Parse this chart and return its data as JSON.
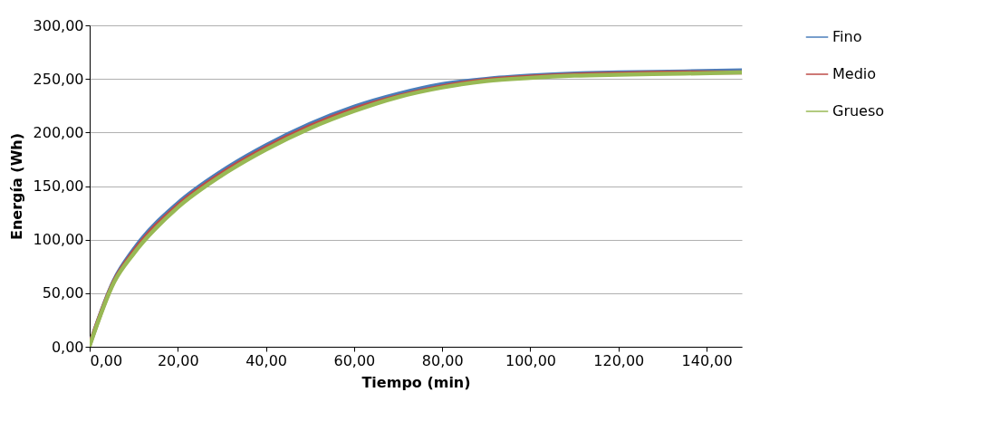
{
  "chart_data": {
    "type": "line",
    "xlabel": "Tiempo (min)",
    "ylabel": "Energía (Wh)",
    "xlim": [
      0,
      148
    ],
    "ylim": [
      0,
      300
    ],
    "xticks": [
      {
        "value": 0,
        "label": "0,00"
      },
      {
        "value": 20,
        "label": "20,00"
      },
      {
        "value": 40,
        "label": "40,00"
      },
      {
        "value": 60,
        "label": "60,00"
      },
      {
        "value": 80,
        "label": "80,00"
      },
      {
        "value": 100,
        "label": "100,00"
      },
      {
        "value": 120,
        "label": "120,00"
      },
      {
        "value": 140,
        "label": "140,00"
      }
    ],
    "yticks": [
      {
        "value": 0,
        "label": "0,00"
      },
      {
        "value": 50,
        "label": "50,00"
      },
      {
        "value": 100,
        "label": "100,00"
      },
      {
        "value": 150,
        "label": "150,00"
      },
      {
        "value": 200,
        "label": "200,00"
      },
      {
        "value": 250,
        "label": "250,00"
      },
      {
        "value": 300,
        "label": "300,00"
      }
    ],
    "x": [
      0,
      5.5,
      10,
      20,
      30,
      40,
      50,
      60,
      70,
      80,
      90,
      100,
      110,
      120,
      135,
      148
    ],
    "grid": "y",
    "legend": "right",
    "marker": "none",
    "line_style": "solid",
    "series": [
      {
        "name": "Fino",
        "color": "#4a7ebb",
        "values": [
          2,
          62,
          91,
          134,
          164,
          188,
          208,
          224,
          236,
          245,
          250,
          253,
          255,
          256,
          257,
          258
        ]
      },
      {
        "name": "Medio",
        "color": "#be4b48",
        "values": [
          2,
          61,
          89,
          132,
          162,
          186,
          206,
          222,
          234,
          243,
          249,
          252,
          254,
          255,
          256,
          256
        ]
      },
      {
        "name": "Grueso",
        "color": "#98b954",
        "values": [
          1,
          60,
          87,
          130,
          160,
          184,
          204,
          220,
          233,
          242,
          248,
          251,
          253,
          254,
          255,
          256
        ]
      }
    ]
  }
}
